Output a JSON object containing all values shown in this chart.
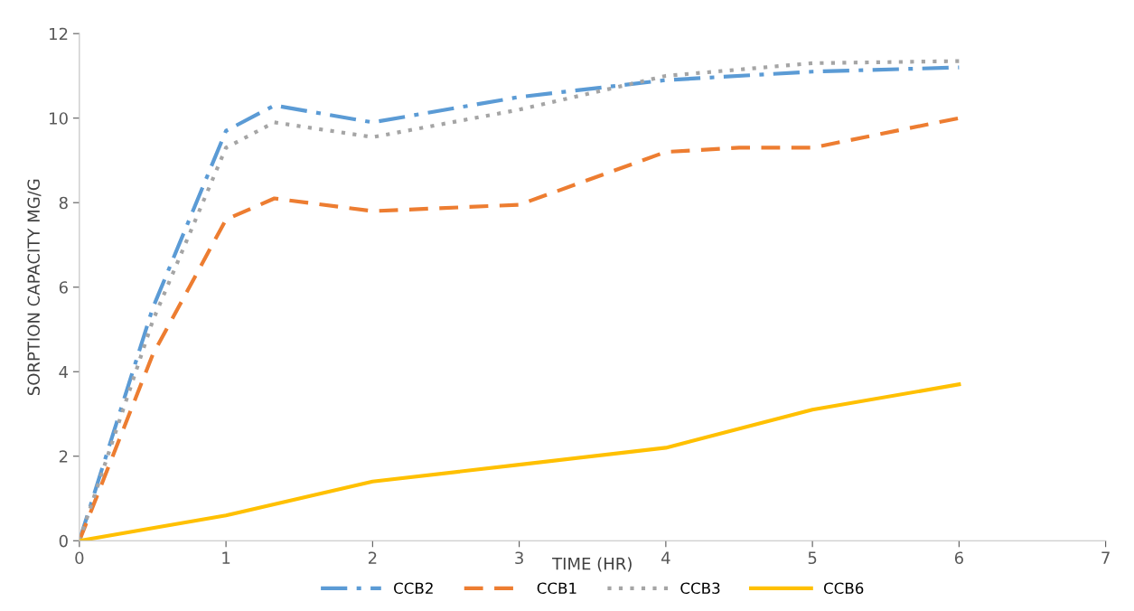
{
  "chart_data": {
    "type": "line",
    "xlabel": "TIME (HR)",
    "ylabel": "SORPTION CAPACITY MG/G",
    "xlim": [
      0,
      7
    ],
    "xticks": [
      0,
      1,
      2,
      3,
      4,
      5,
      6,
      7
    ],
    "ylim": [
      0,
      12
    ],
    "yticks": [
      0,
      2,
      4,
      6,
      8,
      10,
      12
    ],
    "grid": false,
    "legend": "bottom",
    "marker": "none",
    "series": [
      {
        "name": "CCB2",
        "color": "#5b9bd5",
        "line_style": "dashdot",
        "x": [
          0,
          0.5,
          1,
          1.33,
          2,
          3,
          4,
          5,
          6
        ],
        "values": [
          0,
          5.5,
          9.7,
          10.3,
          9.9,
          10.5,
          10.9,
          11.1,
          11.2
        ]
      },
      {
        "name": "CCB1",
        "color": "#ed7d31",
        "line_style": "dashed",
        "x": [
          0,
          0.5,
          1,
          1.33,
          2,
          3,
          4,
          4.5,
          5,
          6
        ],
        "values": [
          0,
          4.4,
          7.6,
          8.1,
          7.8,
          7.95,
          9.2,
          9.3,
          9.3,
          10.0
        ]
      },
      {
        "name": "CCB3",
        "color": "#a5a5a5",
        "line_style": "dotted",
        "x": [
          0,
          0.5,
          1,
          1.33,
          2,
          3,
          4,
          5,
          6
        ],
        "values": [
          0,
          5.2,
          9.3,
          9.9,
          9.55,
          10.2,
          11.0,
          11.3,
          11.35
        ]
      },
      {
        "name": "CCB6",
        "color": "#ffc000",
        "line_style": "solid",
        "x": [
          0,
          0.5,
          1,
          2,
          3,
          4,
          5,
          6
        ],
        "values": [
          0,
          0.3,
          0.6,
          1.4,
          1.8,
          2.2,
          3.1,
          3.7
        ]
      }
    ]
  }
}
